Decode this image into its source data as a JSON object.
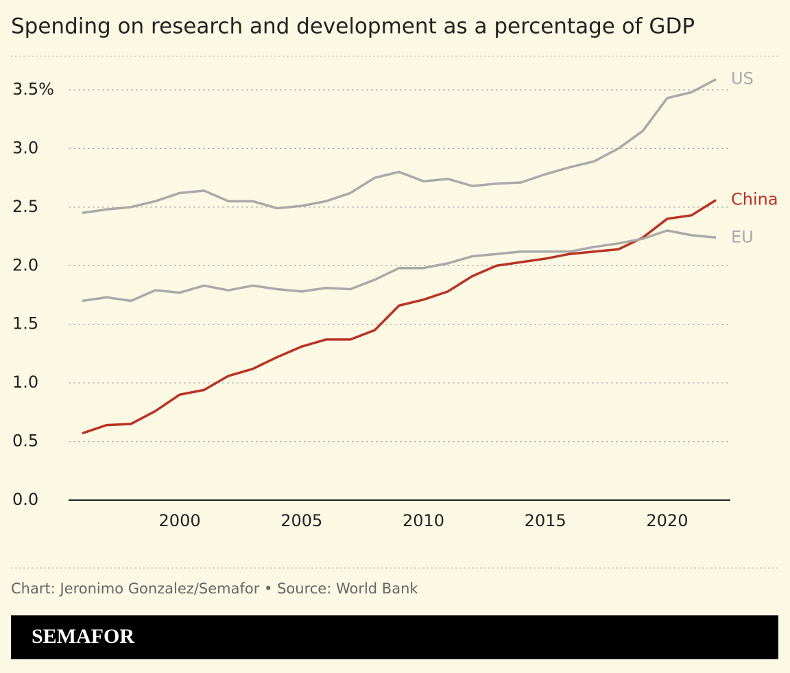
{
  "chart_data": {
    "type": "line",
    "title": "Spending on research and development as a percentage of GDP",
    "x": [
      1996,
      1997,
      1998,
      1999,
      2000,
      2001,
      2002,
      2003,
      2004,
      2005,
      2006,
      2007,
      2008,
      2009,
      2010,
      2011,
      2012,
      2013,
      2014,
      2015,
      2016,
      2017,
      2018,
      2019,
      2020,
      2021,
      2022
    ],
    "series": [
      {
        "name": "US",
        "color": "#a9a9a9",
        "values": [
          2.45,
          2.48,
          2.5,
          2.55,
          2.62,
          2.64,
          2.55,
          2.55,
          2.49,
          2.51,
          2.55,
          2.62,
          2.75,
          2.8,
          2.72,
          2.74,
          2.68,
          2.7,
          2.71,
          2.78,
          2.84,
          2.89,
          3.0,
          3.15,
          3.43,
          3.48,
          3.59
        ]
      },
      {
        "name": "China",
        "color": "#b93224",
        "values": [
          0.57,
          0.64,
          0.65,
          0.76,
          0.9,
          0.94,
          1.06,
          1.12,
          1.22,
          1.31,
          1.37,
          1.37,
          1.45,
          1.66,
          1.71,
          1.78,
          1.91,
          2.0,
          2.03,
          2.06,
          2.1,
          2.12,
          2.14,
          2.24,
          2.4,
          2.43,
          2.56
        ]
      },
      {
        "name": "EU",
        "color": "#a9a9a9",
        "values": [
          1.7,
          1.73,
          1.7,
          1.79,
          1.77,
          1.83,
          1.79,
          1.83,
          1.8,
          1.78,
          1.81,
          1.8,
          1.88,
          1.98,
          1.98,
          2.02,
          2.08,
          2.1,
          2.12,
          2.12,
          2.12,
          2.16,
          2.19,
          2.23,
          2.3,
          2.26,
          2.24
        ]
      }
    ],
    "xlim": [
      1995.44,
      2022.59
    ],
    "xticks": [
      2000,
      2005,
      2010,
      2015,
      2020
    ],
    "ylim": [
      0,
      3.5
    ],
    "yticks": [
      {
        "value": 0,
        "label": "0.0"
      },
      0.5,
      {
        "value": 1,
        "label": "1.0"
      },
      1.5,
      {
        "value": 2,
        "label": "2.0"
      },
      2.5,
      {
        "value": 3,
        "label": "3.0"
      },
      {
        "value": 3.5,
        "label": "3.5%"
      }
    ],
    "grid": true
  },
  "footer": {
    "credit": "Chart: Jeronimo Gonzalez/Semafor • Source: World Bank",
    "brand": "SEMAFOR"
  }
}
